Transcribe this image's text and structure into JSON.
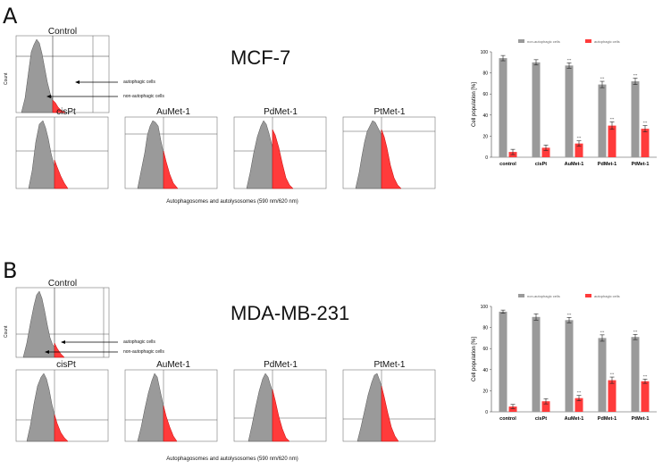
{
  "colors": {
    "grey": "#9a9a9a",
    "red": "#ff3b3b",
    "redDark": "#cc0000"
  },
  "panels": [
    {
      "letter": "A",
      "cell_line": "MCF-7",
      "control_label": "Control",
      "hist_labels": [
        "cisPt",
        "AuMet-1",
        "PdMet-1",
        "PtMet-1"
      ],
      "annotation_autophagic": "autophagic cells",
      "annotation_nonautophagic": "non-autophagic cells",
      "count_label": "Count",
      "xaxis_label": "Autophagosomes and autolysosomes (590 nm/620 nm)"
    },
    {
      "letter": "B",
      "cell_line": "MDA-MB-231",
      "control_label": "Control",
      "hist_labels": [
        "cisPt",
        "AuMet-1",
        "PdMet-1",
        "PtMet-1"
      ],
      "annotation_autophagic": "autophagic cells",
      "annotation_nonautophagic": "non-autophagic cells",
      "count_label": "Count",
      "xaxis_label": "Autophagosomes and autolysosomes (590 nm/620 nm)"
    }
  ],
  "chart_data": [
    {
      "type": "bar",
      "categories": [
        "control",
        "cisPt",
        "AuMet-1",
        "PdMet-1",
        "PtMet-1"
      ],
      "series": [
        {
          "name": "non-autophagic cells",
          "values": [
            94,
            90,
            87,
            69,
            72
          ],
          "errors": [
            2.5,
            2.5,
            2.5,
            3,
            3
          ],
          "color": "#9a9a9a"
        },
        {
          "name": "autophagic cells",
          "values": [
            5,
            9,
            13,
            30,
            27
          ],
          "errors": [
            2.5,
            2.5,
            2.5,
            3.5,
            3
          ],
          "color": "#ff3b3b"
        }
      ],
      "significance": [
        "",
        "",
        "***",
        "***",
        "***"
      ],
      "ylabel": "Cell population [%]",
      "yticks": [
        "0",
        "20",
        "40",
        "60",
        "80",
        "100"
      ],
      "ylim": [
        0,
        100
      ],
      "legend_position": "top"
    },
    {
      "type": "bar",
      "categories": [
        "control",
        "cisPt",
        "AuMet-1",
        "PdMet-1",
        "PtMet-1"
      ],
      "series": [
        {
          "name": "non-autophagic cells",
          "values": [
            95,
            90,
            87,
            70,
            71
          ],
          "errors": [
            1.5,
            3,
            2.5,
            3,
            2.5
          ],
          "color": "#9a9a9a"
        },
        {
          "name": "autophagic cells",
          "values": [
            5,
            10,
            13,
            30,
            29
          ],
          "errors": [
            2,
            2.5,
            2.5,
            3,
            2
          ],
          "color": "#ff3b3b"
        }
      ],
      "significance": [
        "",
        "",
        "***",
        "***",
        "***"
      ],
      "ylabel": "Cell population [%]",
      "yticks": [
        "0",
        "20",
        "40",
        "60",
        "80",
        "100"
      ],
      "ylim": [
        0,
        100
      ],
      "legend_position": "top"
    }
  ]
}
